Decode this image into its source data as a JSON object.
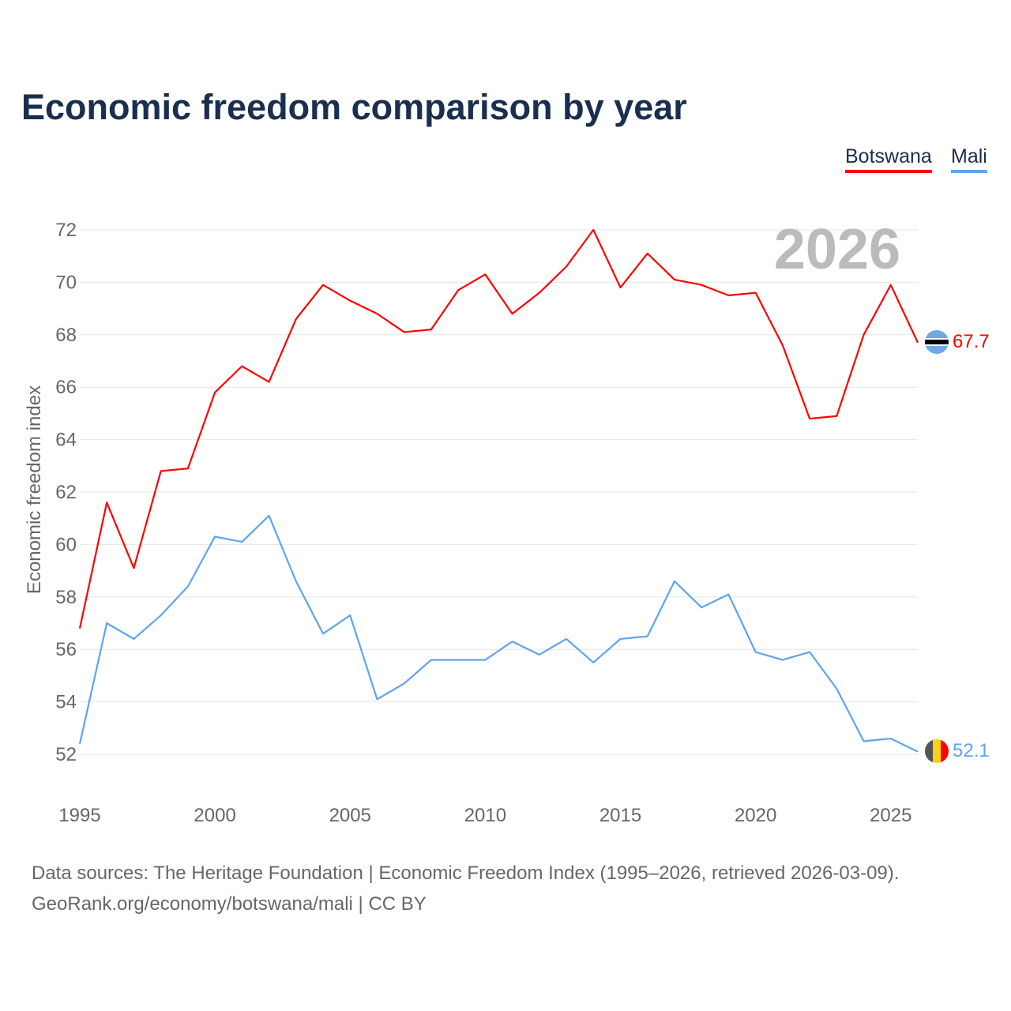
{
  "title": "Economic freedom comparison by year",
  "footer": {
    "line1": "Data sources: The Heritage Foundation | Economic Freedom Index (1995–2026, retrieved 2026-03-09).",
    "line2": "GeoRank.org/economy/botswana/mali | CC BY"
  },
  "chart_data": {
    "type": "line",
    "title": "Economic freedom comparison by year",
    "xlabel": "",
    "ylabel": "Economic freedom index",
    "year_label": "2026",
    "x": [
      1995,
      1996,
      1997,
      1998,
      1999,
      2000,
      2001,
      2002,
      2003,
      2004,
      2005,
      2006,
      2007,
      2008,
      2009,
      2010,
      2011,
      2012,
      2013,
      2014,
      2015,
      2016,
      2017,
      2018,
      2019,
      2020,
      2021,
      2022,
      2023,
      2024,
      2025,
      2026
    ],
    "xlim": [
      1995,
      2026
    ],
    "ylim": [
      52,
      72
    ],
    "xticks": [
      1995,
      2000,
      2005,
      2010,
      2015,
      2020,
      2025
    ],
    "yticks": [
      52,
      54,
      56,
      58,
      60,
      62,
      64,
      66,
      68,
      70,
      72
    ],
    "grid": true,
    "legend": "top-right",
    "series": [
      {
        "name": "Botswana",
        "color": "#ff0000",
        "end_label": "67.7",
        "values": [
          56.8,
          61.6,
          59.1,
          62.8,
          62.9,
          65.8,
          66.8,
          66.2,
          68.6,
          69.9,
          69.3,
          68.8,
          68.1,
          68.2,
          69.7,
          70.3,
          68.8,
          69.6,
          70.6,
          72.0,
          69.8,
          71.1,
          70.1,
          69.9,
          69.5,
          69.6,
          67.6,
          64.8,
          64.9,
          68.0,
          69.9,
          67.7
        ]
      },
      {
        "name": "Mali",
        "color": "#5ea4ef",
        "end_label": "52.1",
        "values": [
          52.4,
          57.0,
          56.4,
          57.3,
          58.4,
          60.3,
          60.1,
          61.1,
          58.6,
          56.6,
          57.3,
          54.1,
          54.7,
          55.6,
          55.6,
          55.6,
          56.3,
          55.8,
          56.4,
          55.5,
          56.4,
          56.5,
          58.6,
          57.6,
          58.1,
          55.9,
          55.6,
          55.9,
          54.5,
          52.5,
          52.6,
          52.1
        ]
      }
    ]
  }
}
